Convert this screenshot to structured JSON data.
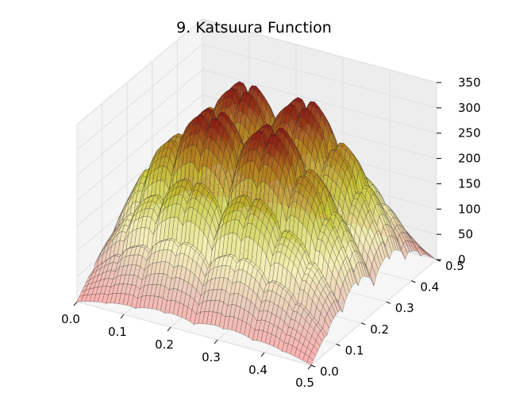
{
  "chart_data": {
    "type": "surface3d",
    "title": "9. Katsuura Function",
    "x_axis": {
      "range": [
        0.0,
        0.5
      ],
      "ticks": [
        "0.0",
        "0.1",
        "0.2",
        "0.3",
        "0.4",
        "0.5"
      ]
    },
    "y_axis": {
      "range": [
        0.0,
        0.5
      ],
      "ticks": [
        "0.0",
        "0.1",
        "0.2",
        "0.3",
        "0.4",
        "0.5"
      ]
    },
    "z_axis": {
      "range": [
        0,
        350
      ],
      "ticks": [
        "0",
        "50",
        "100",
        "150",
        "200",
        "250",
        "300",
        "350"
      ]
    },
    "surface": {
      "peak_value": 340,
      "colormap": [
        "#ff9a9a",
        "#e6bcaa",
        "#f5f0a8",
        "#c8c832",
        "#b47a1e",
        "#8b1414"
      ],
      "wire_color": "#262626"
    },
    "grid": true
  }
}
